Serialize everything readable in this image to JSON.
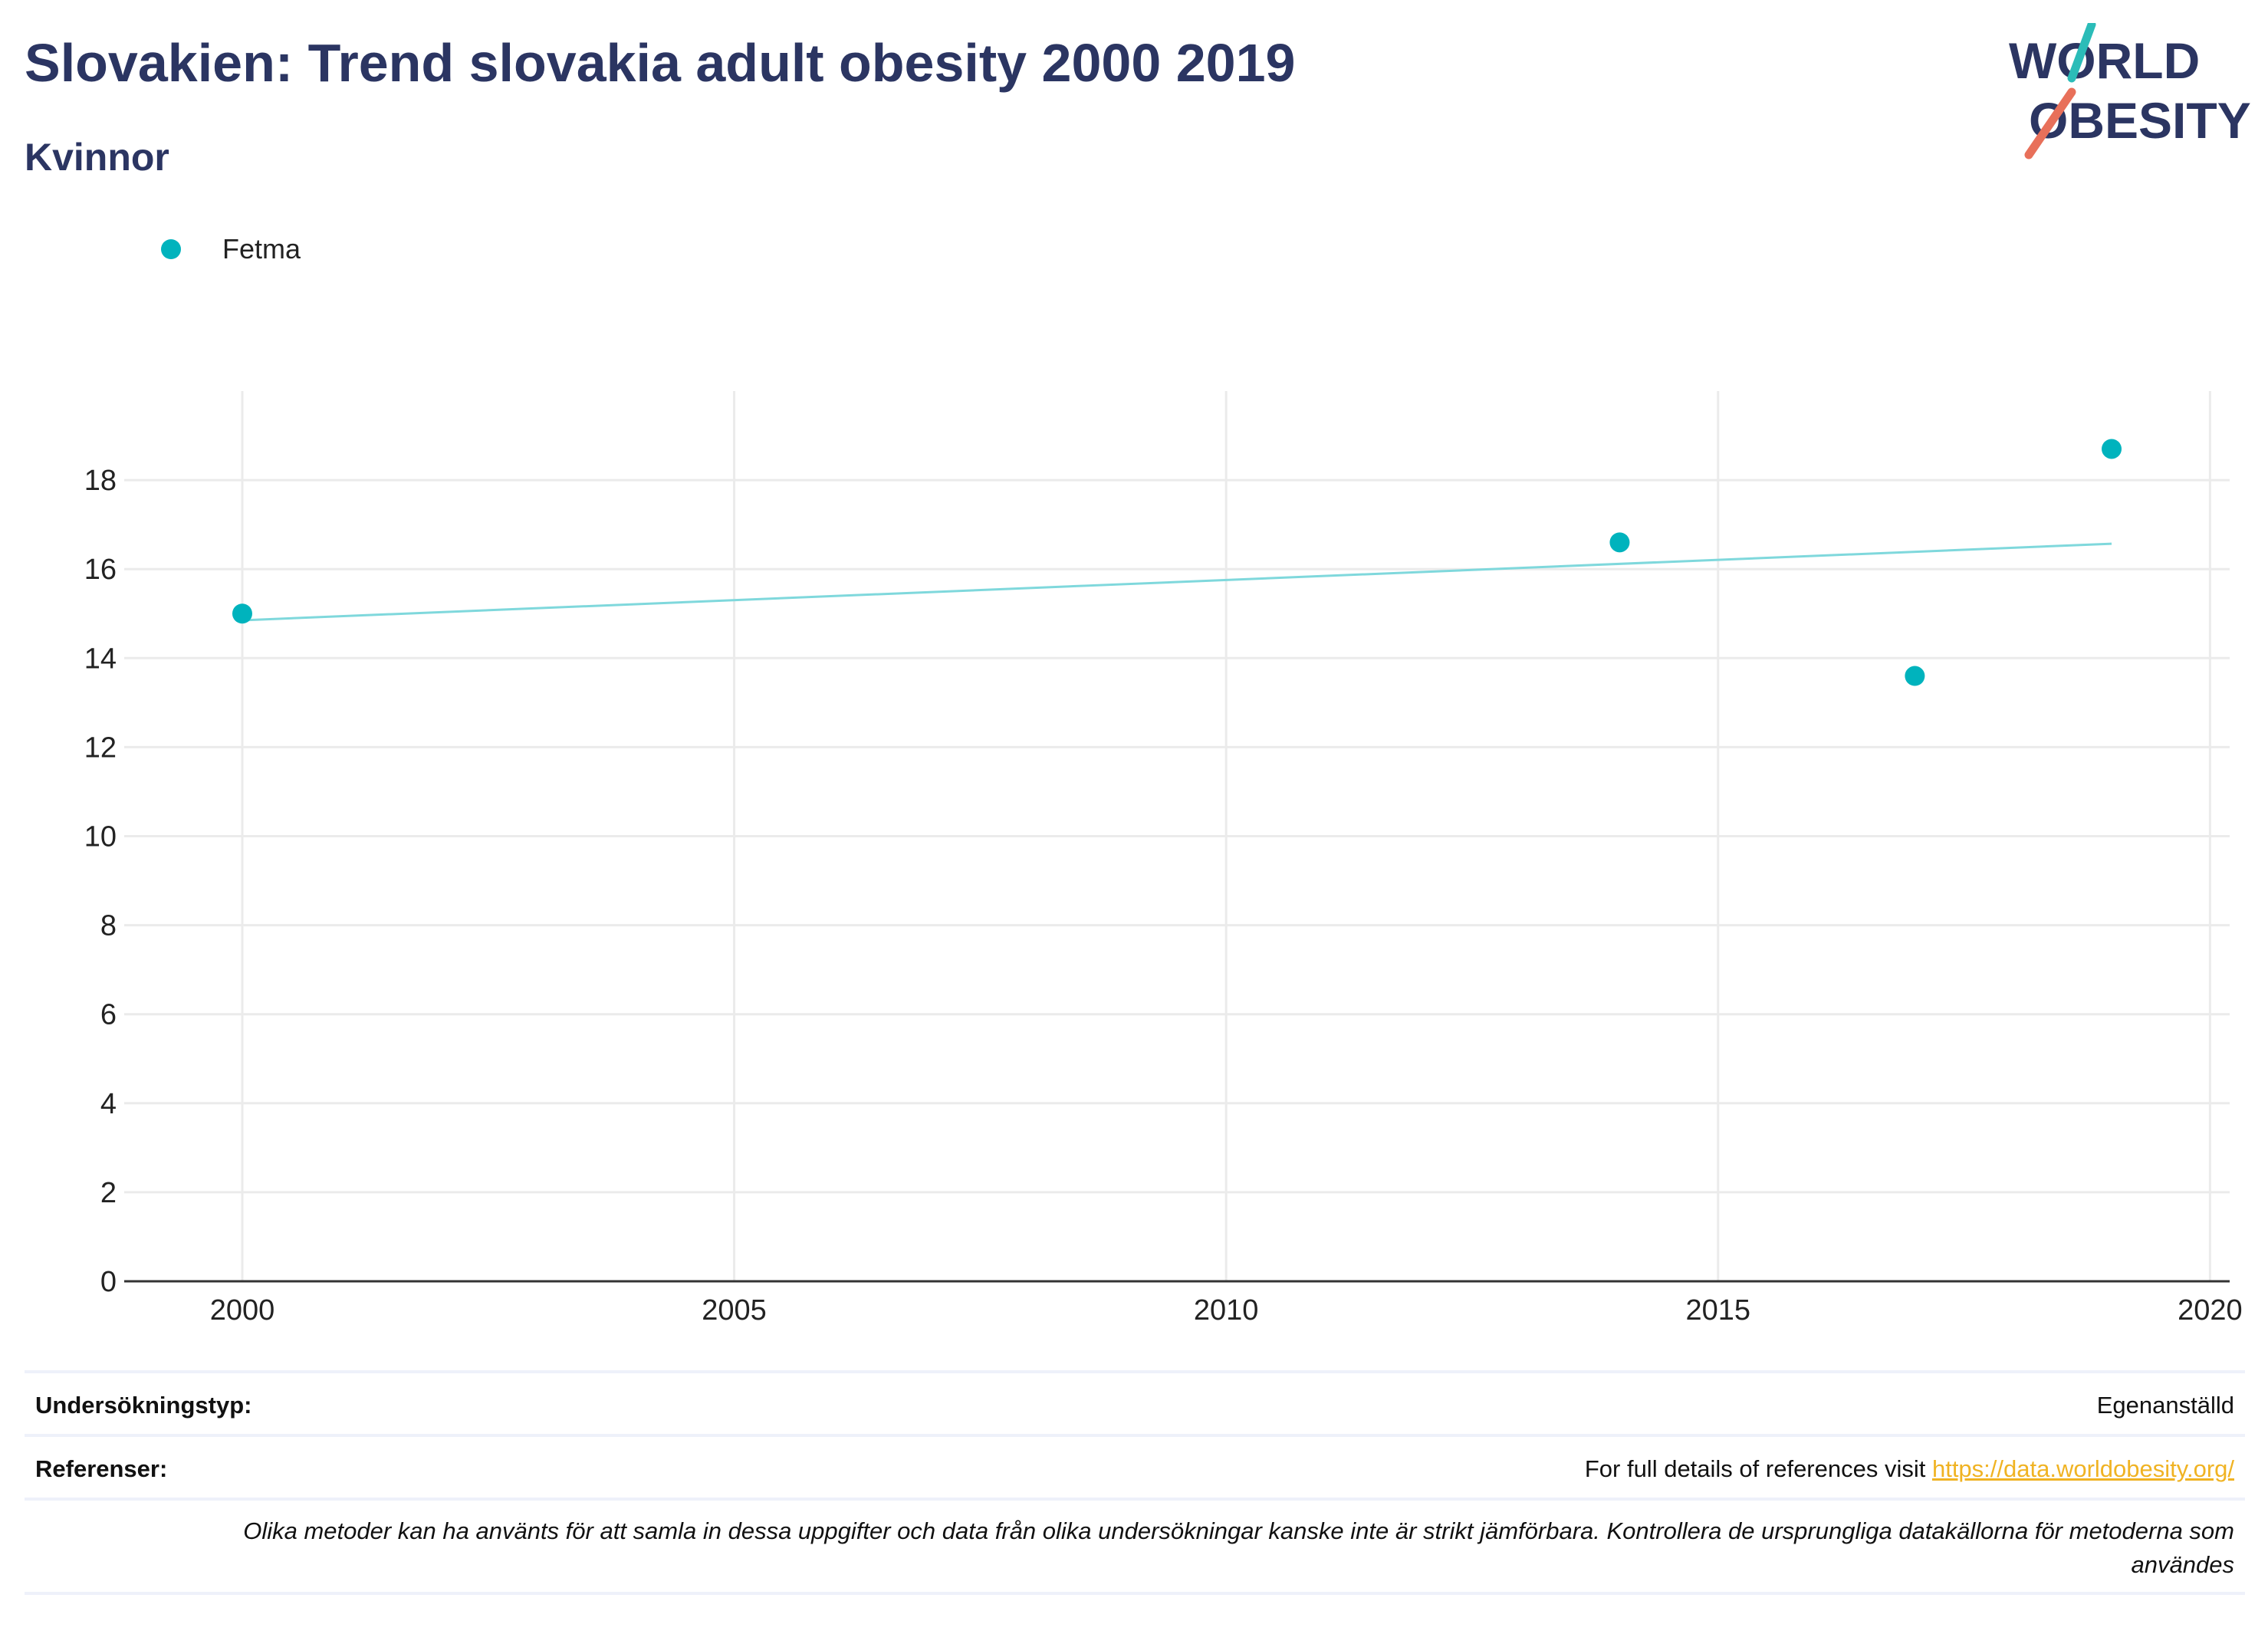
{
  "header": {
    "title": "Slovakien: Trend slovakia adult obesity 2000 2019",
    "subtitle": "Kvinnor"
  },
  "logo": {
    "line1": "WORLD",
    "line2": "OBESITY"
  },
  "legend": {
    "label": "Fetma"
  },
  "colors": {
    "series": "#00b3bd",
    "trend": "#7fd8dc",
    "title": "#2b3562",
    "link": "#f0b323",
    "logo_teal": "#2bbcb8",
    "logo_coral": "#e8705a"
  },
  "chart_data": {
    "type": "scatter",
    "series": [
      {
        "name": "Fetma",
        "x": [
          2000,
          2014,
          2017,
          2019
        ],
        "y": [
          15.0,
          16.6,
          13.6,
          18.7
        ]
      }
    ],
    "trendline": {
      "x": [
        2000,
        2019
      ],
      "y": [
        14.85,
        16.57
      ]
    },
    "xlim": [
      1998.8,
      2020.2
    ],
    "ylim": [
      0,
      20
    ],
    "xticks": [
      2000,
      2005,
      2010,
      2015,
      2020
    ],
    "yticks": [
      0,
      2,
      4,
      6,
      8,
      10,
      12,
      14,
      16,
      18
    ],
    "grid": true,
    "legend_position": "top-left"
  },
  "footer": {
    "survey_label": "Undersökningstyp:",
    "survey_value": "Egenanställd",
    "ref_label": "Referenser:",
    "ref_text": "For full details of references visit ",
    "ref_link": "https://data.worldobesity.org/",
    "note": "Olika metoder kan ha använts för att samla in dessa uppgifter och data från olika undersökningar kanske inte är strikt jämförbara. Kontrollera de ursprungliga datakällorna för metoderna som användes"
  }
}
